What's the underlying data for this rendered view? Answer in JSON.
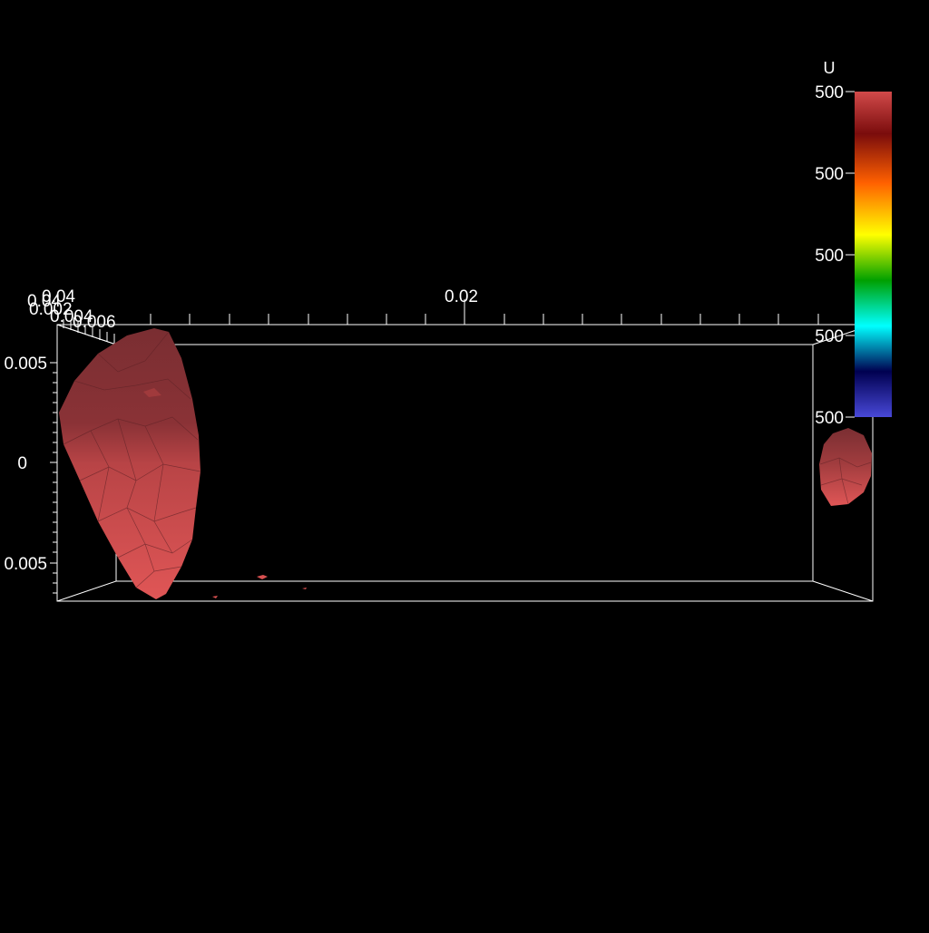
{
  "scene": {
    "background_color": "#000000",
    "surface_color": "#c84a4a",
    "surface_dark_color": "#7a2e32",
    "axis_color": "#ffffff"
  },
  "axes": {
    "top_labels": [
      "0.04",
      "0.02"
    ],
    "corner_labels": [
      "0.04",
      "0.002",
      "0.004",
      "0.006"
    ],
    "left_labels": [
      "0.005",
      "0",
      "0.005"
    ]
  },
  "colorbar": {
    "title": "U",
    "tick_labels": [
      "500",
      "500",
      "500",
      "500",
      "500"
    ],
    "colormap": [
      "#d04848",
      "#7a0a0a",
      "#ff6a00",
      "#ffff00",
      "#00a000",
      "#00ffff",
      "#000060",
      "#4040d0"
    ]
  }
}
